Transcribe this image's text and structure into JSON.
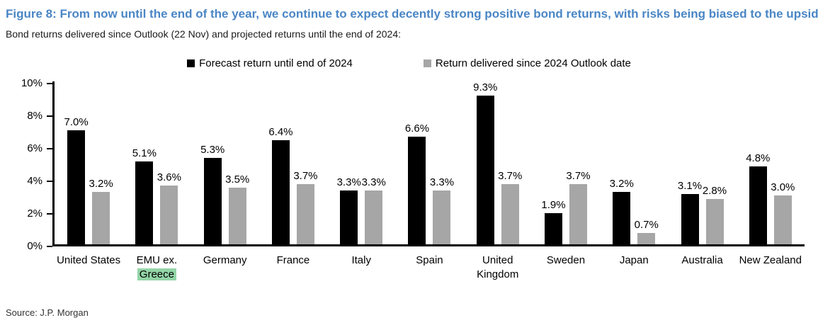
{
  "figure": {
    "title": "Figure 8: From now until the end of the year, we continue to expect decently strong positive bond returns, with risks being biased to the upside",
    "subtitle": "Bond returns delivered since Outlook (22 Nov) and projected returns until the end of 2024:",
    "source": "Source: J.P. Morgan"
  },
  "colors": {
    "title_blue": "#4a86c5",
    "forecast_black": "#000000",
    "delivered_gray": "#a6a6a6",
    "highlight_green": "#93d5a6",
    "axis_black": "#000000"
  },
  "chart_data": {
    "type": "bar",
    "title": "Figure 8: From now until the end of the year, we continue to expect decently strong positive bond returns, with risks being biased to the upside",
    "subtitle": "Bond returns delivered since Outlook (22 Nov) and projected returns until the end of 2024:",
    "xlabel": "",
    "ylabel": "",
    "ylim": [
      0,
      10
    ],
    "yticks": [
      0,
      2,
      4,
      6,
      8,
      10
    ],
    "ytick_labels": [
      "0%",
      "2%",
      "4%",
      "6%",
      "8%",
      "10%"
    ],
    "grid": false,
    "legend_position": "top-center",
    "categories": [
      "United States",
      "EMU ex. Greece",
      "Germany",
      "France",
      "Italy",
      "Spain",
      "United Kingdom",
      "Sweden",
      "Japan",
      "Australia",
      "New Zealand"
    ],
    "category_label_lines": [
      [
        "United States"
      ],
      [
        "EMU ex.",
        "Greece"
      ],
      [
        "Germany"
      ],
      [
        "France"
      ],
      [
        "Italy"
      ],
      [
        "Spain"
      ],
      [
        "United",
        "Kingdom"
      ],
      [
        "Sweden"
      ],
      [
        "Japan"
      ],
      [
        "Australia"
      ],
      [
        "New Zealand"
      ]
    ],
    "highlighted_word": "Greece",
    "series": [
      {
        "name": "Forecast return until end of 2024",
        "color": "#000000",
        "values": [
          7.0,
          5.1,
          5.3,
          6.4,
          3.3,
          6.6,
          9.3,
          1.9,
          3.2,
          3.1,
          4.8
        ],
        "value_labels": [
          "7.0%",
          "5.1%",
          "5.3%",
          "6.4%",
          "3.3%",
          "6.6%",
          "9.3%",
          "1.9%",
          "3.2%",
          "3.1%",
          "4.8%"
        ]
      },
      {
        "name": "Return delivered since 2024 Outlook date",
        "color": "#a6a6a6",
        "values": [
          3.2,
          3.6,
          3.5,
          3.7,
          3.3,
          3.3,
          3.7,
          3.7,
          0.7,
          2.8,
          3.0
        ],
        "value_labels": [
          "3.2%",
          "3.6%",
          "3.5%",
          "3.7%",
          "3.3%",
          "3.3%",
          "3.7%",
          "3.7%",
          "0.7%",
          "2.8%",
          "3.0%"
        ]
      }
    ]
  }
}
